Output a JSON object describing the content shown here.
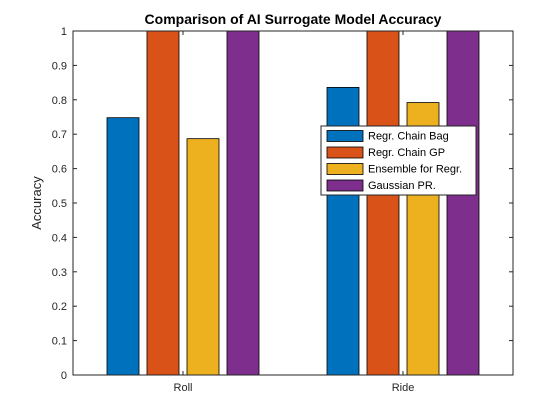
{
  "chart_data": {
    "type": "bar",
    "title": "Comparison of AI Surrogate Model Accuracy",
    "xlabel": "",
    "ylabel": "Accuracy",
    "ylim": [
      0,
      1
    ],
    "yticks": [
      "0",
      "0.1",
      "0.2",
      "0.3",
      "0.4",
      "0.5",
      "0.6",
      "0.7",
      "0.8",
      "0.9",
      "1"
    ],
    "categories": [
      "Roll",
      "Ride"
    ],
    "series": [
      {
        "name": "Regr. Chain Bag",
        "values": [
          0.748,
          0.836
        ],
        "color": "#0072BD"
      },
      {
        "name": "Regr. Chain GP",
        "values": [
          1.0,
          1.0
        ],
        "color": "#D95319"
      },
      {
        "name": "Ensemble for Regr.",
        "values": [
          0.687,
          0.792
        ],
        "color": "#EDB120"
      },
      {
        "name": "Gaussian PR.",
        "values": [
          1.0,
          1.0
        ],
        "color": "#7E2F8E"
      }
    ],
    "grid": false,
    "legend_position": "right-center"
  }
}
